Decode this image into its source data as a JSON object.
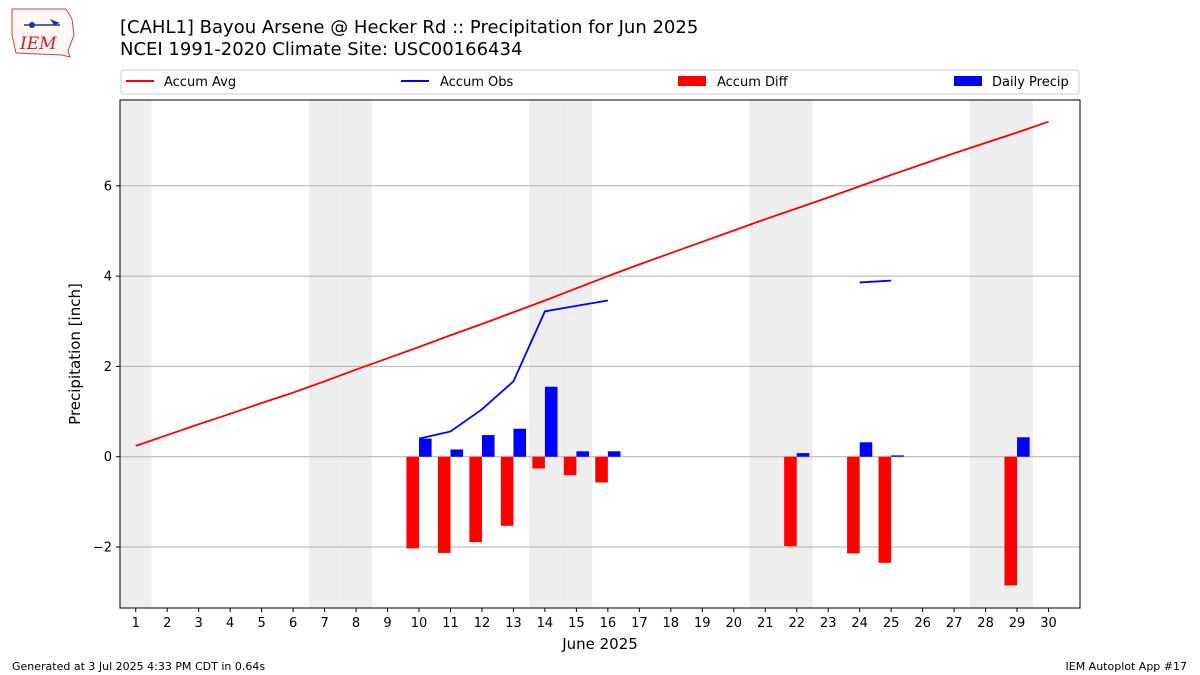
{
  "title": "[CAHL1] Bayou Arsene @ Hecker Rd :: Precipitation for Jun 2025",
  "subtitle": "NCEI 1991-2020 Climate Site: USC00166434",
  "logo_text": "IEM",
  "footer_left": "Generated at 3 Jul 2025 4:33 PM CDT in 0.64s",
  "footer_right": "IEM Autoplot App #17",
  "colors": {
    "accum_avg": "#ff0000",
    "accum_obs": "#0000ff",
    "accum_diff": "#ff0000",
    "daily_precip": "#0000ff",
    "weekend_shade": "#eeeeee",
    "grid": "#b0b0b0"
  },
  "chart_data": {
    "type": "bar",
    "xlabel": "June 2025",
    "ylabel": "Precipitation [inch]",
    "xlim": [
      0.5,
      31
    ],
    "ylim": [
      -3.35,
      7.9
    ],
    "yticks": [
      -2,
      0,
      2,
      4,
      6
    ],
    "ytick_labels": [
      "−2",
      "0",
      "2",
      "4",
      "6"
    ],
    "categories": [
      1,
      2,
      3,
      4,
      5,
      6,
      7,
      8,
      9,
      10,
      11,
      12,
      13,
      14,
      15,
      16,
      17,
      18,
      19,
      20,
      21,
      22,
      23,
      24,
      25,
      26,
      27,
      28,
      29,
      30
    ],
    "grid": "horizontal",
    "legend_position": "top",
    "weekend_days": [
      1,
      7,
      8,
      14,
      15,
      21,
      22,
      28,
      29
    ],
    "series": [
      {
        "name": "Accum Avg",
        "type": "line",
        "x": [
          1,
          2,
          3,
          4,
          5,
          6,
          7,
          8,
          9,
          10,
          11,
          12,
          13,
          14,
          15,
          16,
          17,
          18,
          19,
          20,
          21,
          22,
          23,
          24,
          25,
          26,
          27,
          28,
          29,
          30
        ],
        "values": [
          0.24,
          0.48,
          0.72,
          0.95,
          1.19,
          1.42,
          1.67,
          1.93,
          2.18,
          2.43,
          2.69,
          2.94,
          3.2,
          3.46,
          3.73,
          4.0,
          4.26,
          4.51,
          4.76,
          5.01,
          5.26,
          5.5,
          5.74,
          5.99,
          6.24,
          6.48,
          6.72,
          6.95,
          7.18,
          7.42
        ]
      },
      {
        "name": "Accum Obs",
        "type": "line",
        "segments": [
          {
            "x": [
              10,
              11,
              12,
              13,
              14,
              15,
              16
            ],
            "values": [
              0.4,
              0.56,
              1.05,
              1.67,
              3.22,
              3.34,
              3.46
            ]
          },
          {
            "x": [
              24,
              25
            ],
            "values": [
              3.86,
              3.9
            ]
          }
        ]
      },
      {
        "name": "Accum Diff",
        "type": "bar",
        "x": [
          10,
          11,
          12,
          13,
          14,
          15,
          16,
          22,
          24,
          25,
          29
        ],
        "values": [
          -2.03,
          -2.13,
          -1.89,
          -1.53,
          -0.26,
          -0.41,
          -0.57,
          -1.98,
          -2.14,
          -2.35,
          -2.85
        ]
      },
      {
        "name": "Daily Precip",
        "type": "bar",
        "x": [
          10,
          11,
          12,
          13,
          14,
          15,
          16,
          22,
          24,
          25,
          29
        ],
        "values": [
          0.4,
          0.16,
          0.48,
          0.62,
          1.55,
          0.12,
          0.12,
          0.08,
          0.32,
          0.03,
          0.43
        ]
      }
    ]
  }
}
